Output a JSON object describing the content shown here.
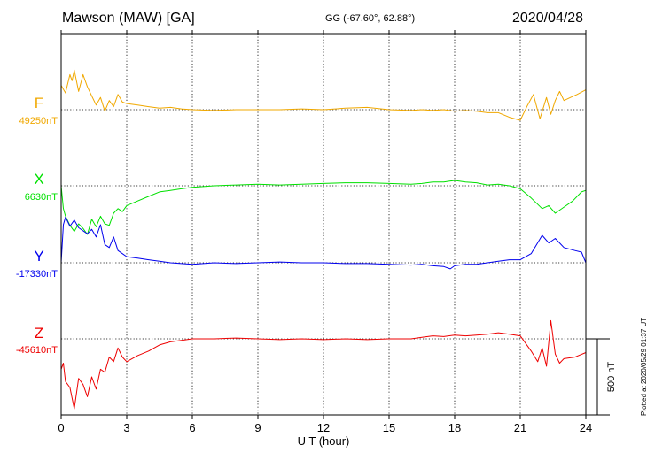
{
  "header": {
    "station": "Mawson (MAW)  [GA]",
    "coords": "GG (-67.60°,  62.88°)",
    "date": "2020/04/28"
  },
  "footer": {
    "plotted": "Plotted at 2020/05/29 01:37 UT"
  },
  "chart_data": {
    "type": "line",
    "title": "Mawson (MAW)  [GA]",
    "xlabel": "U T (hour)",
    "xlim": [
      0,
      24
    ],
    "xticks": [
      "0",
      "3",
      "6",
      "9",
      "12",
      "15",
      "18",
      "21",
      "24"
    ],
    "grid": true,
    "scale_bar": "500 nT",
    "scale_bar_value_nT": 500,
    "series": [
      {
        "name": "F",
        "baseline_label": "49250nT",
        "baseline_nT": 49250,
        "color": "#f0a800",
        "x": [
          0,
          0.2,
          0.4,
          0.5,
          0.6,
          0.8,
          1.0,
          1.2,
          1.4,
          1.6,
          1.8,
          2.0,
          2.2,
          2.4,
          2.6,
          2.8,
          3.0,
          3.5,
          4.0,
          4.5,
          5.0,
          5.5,
          6.0,
          7.0,
          8.0,
          9.0,
          10.0,
          11.0,
          12.0,
          13.0,
          14.0,
          15.0,
          16.0,
          16.5,
          17.0,
          17.5,
          18.0,
          18.5,
          19.0,
          19.5,
          20.0,
          20.5,
          21.0,
          21.3,
          21.6,
          21.9,
          22.2,
          22.4,
          22.6,
          22.8,
          23.0,
          23.3,
          23.6,
          24.0
        ],
        "values": [
          160,
          110,
          230,
          190,
          260,
          120,
          230,
          150,
          90,
          30,
          80,
          -10,
          60,
          20,
          100,
          50,
          40,
          30,
          20,
          10,
          15,
          5,
          0,
          -5,
          0,
          0,
          0,
          5,
          0,
          10,
          15,
          0,
          -5,
          0,
          -5,
          0,
          -10,
          -5,
          -10,
          -20,
          -20,
          -50,
          -70,
          20,
          100,
          -60,
          80,
          -30,
          60,
          120,
          60,
          80,
          100,
          130
        ]
      },
      {
        "name": "X",
        "baseline_label": "6630nT",
        "baseline_nT": 6630,
        "color": "#00e000",
        "x": [
          0,
          0.1,
          0.2,
          0.4,
          0.6,
          0.8,
          1.0,
          1.2,
          1.4,
          1.6,
          1.8,
          2.0,
          2.2,
          2.4,
          2.6,
          2.8,
          3.0,
          3.5,
          4.0,
          4.5,
          5.0,
          5.5,
          6.0,
          7.0,
          8.0,
          9.0,
          10.0,
          11.0,
          12.0,
          13.0,
          14.0,
          15.0,
          16.0,
          16.5,
          17.0,
          17.5,
          18.0,
          18.5,
          19.0,
          19.5,
          20.0,
          20.5,
          21.0,
          21.5,
          22.0,
          22.3,
          22.6,
          23.0,
          23.4,
          23.8,
          24.0
        ],
        "values": [
          0,
          -150,
          -200,
          -260,
          -300,
          -250,
          -280,
          -320,
          -220,
          -270,
          -200,
          -250,
          -260,
          -180,
          -150,
          -170,
          -130,
          -100,
          -70,
          -40,
          -30,
          -20,
          -10,
          0,
          5,
          10,
          5,
          10,
          15,
          20,
          20,
          15,
          10,
          15,
          25,
          25,
          35,
          25,
          20,
          5,
          10,
          0,
          -20,
          -80,
          -150,
          -130,
          -180,
          -140,
          -100,
          -40,
          -30
        ]
      },
      {
        "name": "Y",
        "baseline_label": "-17330nT",
        "baseline_nT": -17330,
        "color": "#0000ee",
        "x": [
          0,
          0.1,
          0.2,
          0.4,
          0.6,
          0.8,
          1.0,
          1.2,
          1.4,
          1.6,
          1.8,
          2.0,
          2.2,
          2.4,
          2.6,
          2.8,
          3.0,
          3.5,
          4.0,
          4.5,
          5.0,
          6.0,
          7.0,
          8.0,
          9.0,
          10.0,
          11.0,
          12.0,
          13.0,
          14.0,
          15.0,
          16.0,
          16.5,
          17.0,
          17.5,
          17.8,
          18.0,
          18.5,
          19.0,
          19.5,
          20.0,
          20.5,
          21.0,
          21.5,
          22.0,
          22.3,
          22.6,
          23.0,
          23.5,
          23.8,
          24.0
        ],
        "values": [
          0,
          250,
          300,
          240,
          280,
          230,
          210,
          190,
          220,
          170,
          250,
          120,
          100,
          170,
          80,
          60,
          40,
          30,
          20,
          10,
          0,
          -10,
          0,
          -5,
          0,
          5,
          0,
          0,
          -5,
          -5,
          -10,
          -15,
          -10,
          -20,
          -25,
          -40,
          -20,
          -10,
          -10,
          0,
          10,
          20,
          20,
          60,
          180,
          130,
          160,
          100,
          80,
          70,
          0
        ]
      },
      {
        "name": "Z",
        "baseline_label": "-45610nT",
        "baseline_nT": -45610,
        "color": "#ee0000",
        "x": [
          0,
          0.1,
          0.2,
          0.4,
          0.6,
          0.8,
          1.0,
          1.2,
          1.4,
          1.6,
          1.8,
          2.0,
          2.2,
          2.4,
          2.6,
          2.8,
          3.0,
          3.5,
          4.0,
          4.5,
          5.0,
          5.5,
          6.0,
          7.0,
          8.0,
          9.0,
          10.0,
          11.0,
          12.0,
          13.0,
          14.0,
          15.0,
          16.0,
          16.5,
          17.0,
          17.5,
          18.0,
          18.5,
          19.0,
          19.5,
          20.0,
          20.5,
          21.0,
          21.5,
          21.8,
          22.0,
          22.2,
          22.4,
          22.6,
          22.8,
          23.0,
          23.5,
          24.0
        ],
        "values": [
          -200,
          -160,
          -280,
          -320,
          -460,
          -260,
          -300,
          -380,
          -250,
          -330,
          -200,
          -220,
          -120,
          -150,
          -60,
          -120,
          -150,
          -110,
          -80,
          -40,
          -20,
          -10,
          0,
          0,
          5,
          0,
          -5,
          0,
          -5,
          0,
          -5,
          0,
          0,
          10,
          20,
          15,
          25,
          20,
          25,
          30,
          40,
          30,
          20,
          -80,
          -150,
          -60,
          -180,
          120,
          -100,
          -160,
          -130,
          -120,
          -90
        ]
      }
    ]
  }
}
